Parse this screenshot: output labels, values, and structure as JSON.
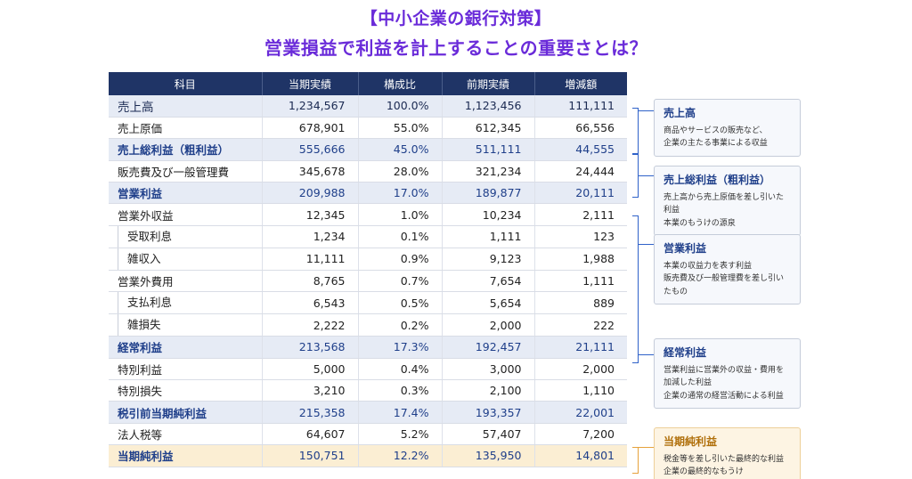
{
  "title_line1": "【中小企業の銀行対策】",
  "title_line2": "営業損益で利益を計上することの重要さとは？",
  "table": {
    "headers": [
      "科目",
      "当期実績",
      "構成比",
      "前期実績",
      "増減額"
    ],
    "rows": [
      {
        "label": "売上高",
        "v1": "1,234,567",
        "v2": "100.0%",
        "v3": "1,123,456",
        "v4": "111,111",
        "style": "hl-first"
      },
      {
        "label": "売上原価",
        "v1": "678,901",
        "v2": "55.0%",
        "v3": "612,345",
        "v4": "66,556",
        "style": "plain"
      },
      {
        "label": "売上総利益（粗利益）",
        "v1": "555,666",
        "v2": "45.0%",
        "v3": "511,111",
        "v4": "44,555",
        "style": "hl"
      },
      {
        "label": "販売費及び一般管理費",
        "v1": "345,678",
        "v2": "28.0%",
        "v3": "321,234",
        "v4": "24,444",
        "style": "plain"
      },
      {
        "label": "営業利益",
        "v1": "209,988",
        "v2": "17.0%",
        "v3": "189,877",
        "v4": "20,111",
        "style": "hl"
      },
      {
        "label": "営業外収益",
        "v1": "12,345",
        "v2": "1.0%",
        "v3": "10,234",
        "v4": "2,111",
        "style": "plain"
      },
      {
        "label": "受取利息",
        "v1": "1,234",
        "v2": "0.1%",
        "v3": "1,111",
        "v4": "123",
        "style": "sub"
      },
      {
        "label": "雑収入",
        "v1": "11,111",
        "v2": "0.9%",
        "v3": "9,123",
        "v4": "1,988",
        "style": "sub"
      },
      {
        "label": "営業外費用",
        "v1": "8,765",
        "v2": "0.7%",
        "v3": "7,654",
        "v4": "1,111",
        "style": "plain"
      },
      {
        "label": "支払利息",
        "v1": "6,543",
        "v2": "0.5%",
        "v3": "5,654",
        "v4": "889",
        "style": "sub"
      },
      {
        "label": "雑損失",
        "v1": "2,222",
        "v2": "0.2%",
        "v3": "2,000",
        "v4": "222",
        "style": "sub"
      },
      {
        "label": "経常利益",
        "v1": "213,568",
        "v2": "17.3%",
        "v3": "192,457",
        "v4": "21,111",
        "style": "hl"
      },
      {
        "label": "特別利益",
        "v1": "5,000",
        "v2": "0.4%",
        "v3": "3,000",
        "v4": "2,000",
        "style": "plain"
      },
      {
        "label": "特別損失",
        "v1": "3,210",
        "v2": "0.3%",
        "v3": "2,100",
        "v4": "1,110",
        "style": "plain"
      },
      {
        "label": "税引前当期純利益",
        "v1": "215,358",
        "v2": "17.4%",
        "v3": "193,357",
        "v4": "22,001",
        "style": "hl"
      },
      {
        "label": "法人税等",
        "v1": "64,607",
        "v2": "5.2%",
        "v3": "57,407",
        "v4": "7,200",
        "style": "plain"
      },
      {
        "label": "当期純利益",
        "v1": "150,751",
        "v2": "12.2%",
        "v3": "135,950",
        "v4": "14,801",
        "style": "gold"
      }
    ]
  },
  "notes": [
    {
      "title": "売上高",
      "lines": [
        "商品やサービスの販売など、",
        "企業の主たる事業による収益"
      ],
      "style": "blue"
    },
    {
      "title": "売上総利益（粗利益）",
      "lines": [
        "売上高から売上原価を差し引いた利益",
        "本業のもうけの源泉"
      ],
      "style": "blue"
    },
    {
      "title": "営業利益",
      "lines": [
        "本業の収益力を表す利益",
        "販売費及び一般管理費を差し引いたもの"
      ],
      "style": "blue"
    },
    {
      "title": "経常利益",
      "lines": [
        "営業利益に営業外の収益・費用を",
        "加減した利益",
        "企業の通常の経営活動による利益"
      ],
      "style": "blue"
    },
    {
      "title": "当期純利益",
      "lines": [
        "税金等を差し引いた最終的な利益",
        "企業の最終的なもうけ"
      ],
      "style": "gold"
    }
  ]
}
